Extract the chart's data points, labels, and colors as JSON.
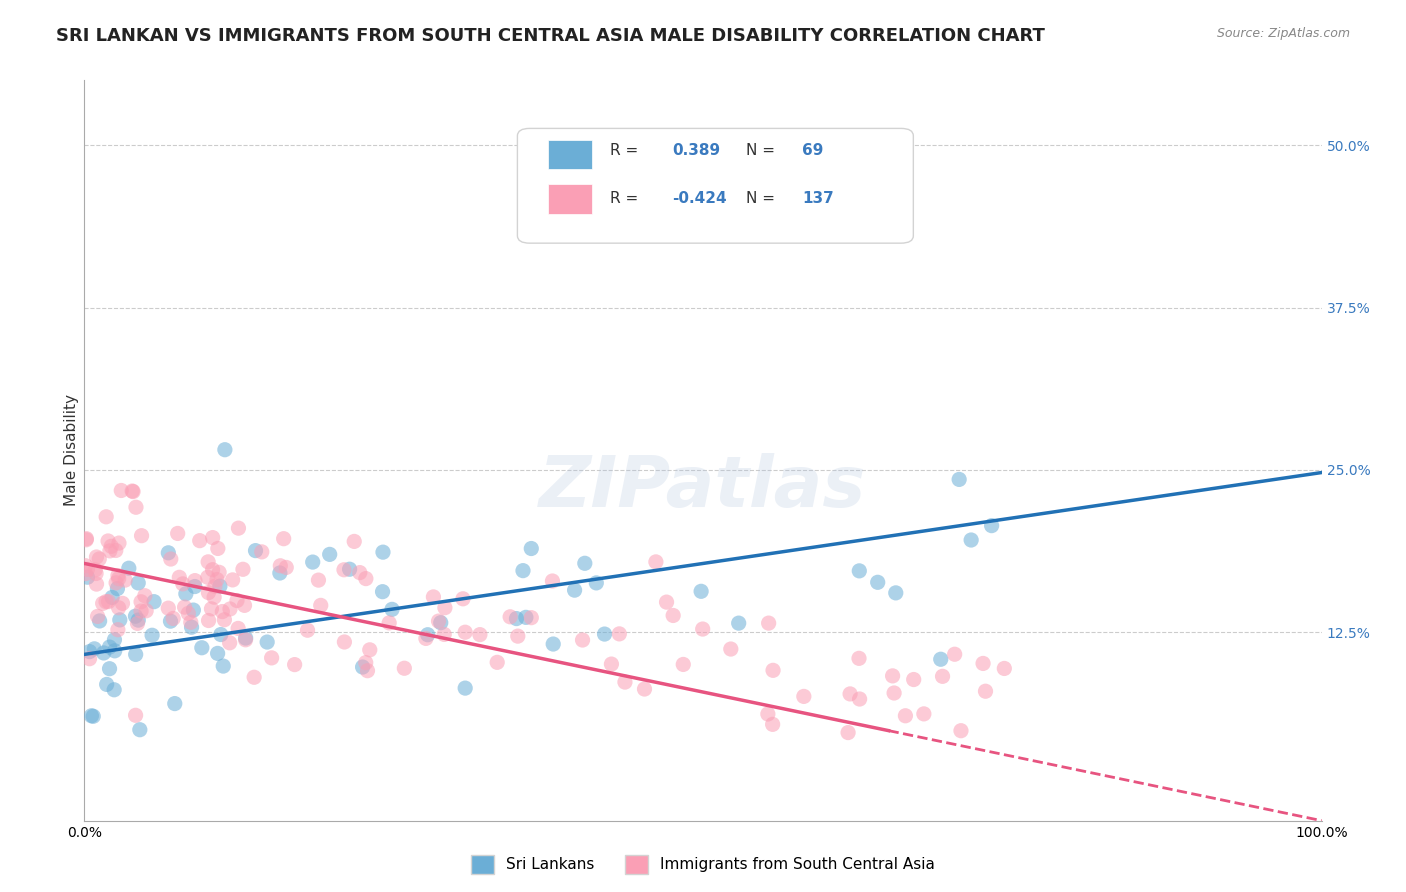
{
  "title": "SRI LANKAN VS IMMIGRANTS FROM SOUTH CENTRAL ASIA MALE DISABILITY CORRELATION CHART",
  "source": "Source: ZipAtlas.com",
  "xlabel": "",
  "ylabel": "Male Disability",
  "xlim": [
    0.0,
    1.0
  ],
  "ylim": [
    -0.02,
    0.55
  ],
  "yticks": [
    0.125,
    0.25,
    0.375,
    0.5
  ],
  "ytick_labels": [
    "12.5%",
    "25.0%",
    "37.5%",
    "50.0%"
  ],
  "xticks": [
    0.0,
    1.0
  ],
  "xtick_labels": [
    "0.0%",
    "100.0%"
  ],
  "blue_R": 0.389,
  "blue_N": 69,
  "pink_R": -0.424,
  "pink_N": 137,
  "blue_color": "#6baed6",
  "pink_color": "#fa9fb5",
  "blue_line_color": "#2171b5",
  "pink_line_color": "#e75480",
  "background_color": "#ffffff",
  "grid_color": "#cccccc",
  "watermark": "ZIPatlas",
  "legend_label_blue": "Sri Lankans",
  "legend_label_pink": "Immigrants from South Central Asia",
  "title_fontsize": 13,
  "ylabel_fontsize": 11,
  "tick_fontsize": 10,
  "legend_fontsize": 11
}
